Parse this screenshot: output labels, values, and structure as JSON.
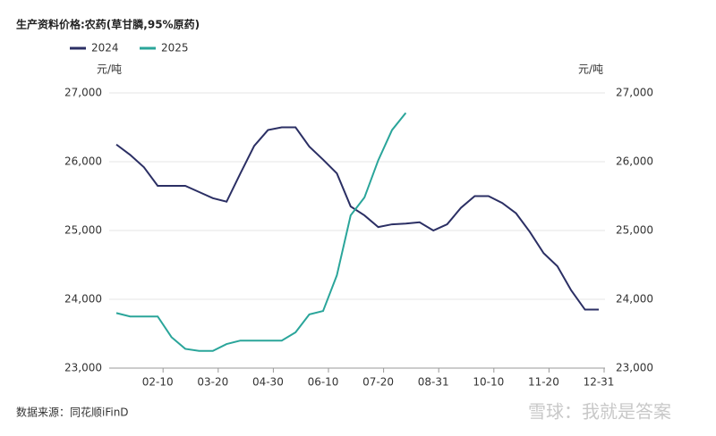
{
  "chart_data": {
    "type": "line",
    "title": "生产资料价格:农药(草甘膦,95%原药)",
    "y_unit": "元/吨",
    "y2_unit": "元/吨",
    "source": "数据来源：同花顺iFinD",
    "watermark": "雪球：我就是答案",
    "categories": [
      null,
      null,
      null,
      "02-10",
      null,
      null,
      null,
      "03-20",
      null,
      null,
      null,
      "04-30",
      null,
      null,
      null,
      "06-10",
      null,
      null,
      null,
      "07-20",
      null,
      null,
      null,
      "08-31",
      null,
      null,
      null,
      "10-10",
      null,
      null,
      null,
      "11-20",
      null,
      null,
      null,
      "12-31"
    ],
    "series": [
      {
        "name": "2024",
        "color": "#2b2f64",
        "values": [
          26250,
          26100,
          25920,
          25650,
          25650,
          25650,
          25560,
          25470,
          25420,
          25830,
          26230,
          26460,
          26500,
          26500,
          26220,
          26030,
          25830,
          25350,
          25220,
          25050,
          25090,
          25100,
          25120,
          25000,
          25090,
          25330,
          25500,
          25500,
          25400,
          25250,
          24980,
          24670,
          24480,
          24130,
          23850,
          23850
        ]
      },
      {
        "name": "2025",
        "color": "#2aa59a",
        "values": [
          23800,
          23750,
          23750,
          23750,
          23450,
          23280,
          23250,
          23250,
          23350,
          23400,
          23400,
          23400,
          23400,
          23520,
          23780,
          23830,
          24350,
          25220,
          25480,
          26020,
          26460,
          26710,
          null,
          null,
          null,
          null,
          null,
          null,
          null,
          null,
          null,
          null,
          null,
          null,
          null,
          null
        ]
      }
    ],
    "ylim": [
      23000,
      27000
    ],
    "yticks": [
      {
        "value": 23000,
        "label": "23,000"
      },
      {
        "value": 24000,
        "label": "24,000"
      },
      {
        "value": 25000,
        "label": "25,000"
      },
      {
        "value": 26000,
        "label": "26,000"
      },
      {
        "value": 27000,
        "label": "27,000"
      }
    ],
    "y2lim": [
      23000,
      27000
    ],
    "y2ticks": [
      {
        "value": 23000,
        "label": "23,000"
      },
      {
        "value": 24000,
        "label": "24,000"
      },
      {
        "value": 25000,
        "label": "25,000"
      },
      {
        "value": 26000,
        "label": "26,000"
      },
      {
        "value": 27000,
        "label": "27,000"
      }
    ],
    "grid": true
  }
}
